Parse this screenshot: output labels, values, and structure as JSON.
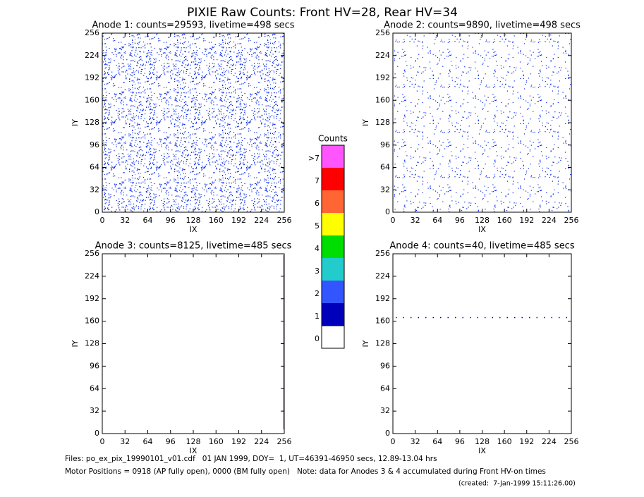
{
  "title": "PIXIE Raw Counts:  Front HV=28, Rear HV=34",
  "chart_data": [
    {
      "type": "heatmap",
      "title": "Anode 1: counts=29593, livetime=498 secs",
      "xlabel": "IX",
      "ylabel": "IY",
      "xlim": [
        0,
        256
      ],
      "ylim": [
        0,
        256
      ],
      "xticks": [
        0,
        32,
        64,
        96,
        128,
        160,
        192,
        224,
        256
      ],
      "yticks": [
        0,
        32,
        64,
        96,
        128,
        160,
        192,
        224,
        256
      ]
    },
    {
      "type": "heatmap",
      "title": "Anode 2: counts=9890, livetime=498 secs",
      "xlabel": "IX",
      "ylabel": "IY",
      "xlim": [
        0,
        256
      ],
      "ylim": [
        0,
        256
      ],
      "xticks": [
        0,
        32,
        64,
        96,
        128,
        160,
        192,
        224,
        256
      ],
      "yticks": [
        0,
        32,
        64,
        96,
        128,
        160,
        192,
        224,
        256
      ]
    },
    {
      "type": "heatmap",
      "title": "Anode 3: counts=8125, livetime=485 secs",
      "xlabel": "IX",
      "ylabel": "IY",
      "xlim": [
        0,
        256
      ],
      "ylim": [
        0,
        256
      ],
      "xticks": [
        0,
        32,
        64,
        96,
        128,
        160,
        192,
        224,
        256
      ],
      "yticks": [
        0,
        32,
        64,
        96,
        128,
        160,
        192,
        224,
        256
      ]
    },
    {
      "type": "heatmap",
      "title": "Anode 4: counts=40, livetime=485 secs",
      "xlabel": "IX",
      "ylabel": "IY",
      "xlim": [
        0,
        256
      ],
      "ylim": [
        0,
        256
      ],
      "xticks": [
        0,
        32,
        64,
        96,
        128,
        160,
        192,
        224,
        256
      ],
      "yticks": [
        0,
        32,
        64,
        96,
        128,
        160,
        192,
        224,
        256
      ]
    }
  ],
  "colorbar": {
    "title": "Counts",
    "labels": [
      ">7",
      "7",
      "6",
      "5",
      "4",
      "3",
      "2",
      "1",
      "0"
    ],
    "colors": [
      "#ff55ff",
      "#ff0000",
      "#ff6633",
      "#ffff00",
      "#00dd00",
      "#22cccc",
      "#3355ff",
      "#0000bb",
      "#ffffff"
    ]
  },
  "footer": [
    "Files: po_ex_pix_19990101_v01.cdf   01 JAN 1999, DOY=  1, UT=46391-46950 secs, 12.89-13.04 hrs",
    "Motor Positions = 0918 (AP fully open), 0000 (BM fully open)   Note: data for Anodes 3 & 4 accumulated during Front HV-on times",
    "(created:  7-Jan-1999 15:11:26.00)"
  ]
}
